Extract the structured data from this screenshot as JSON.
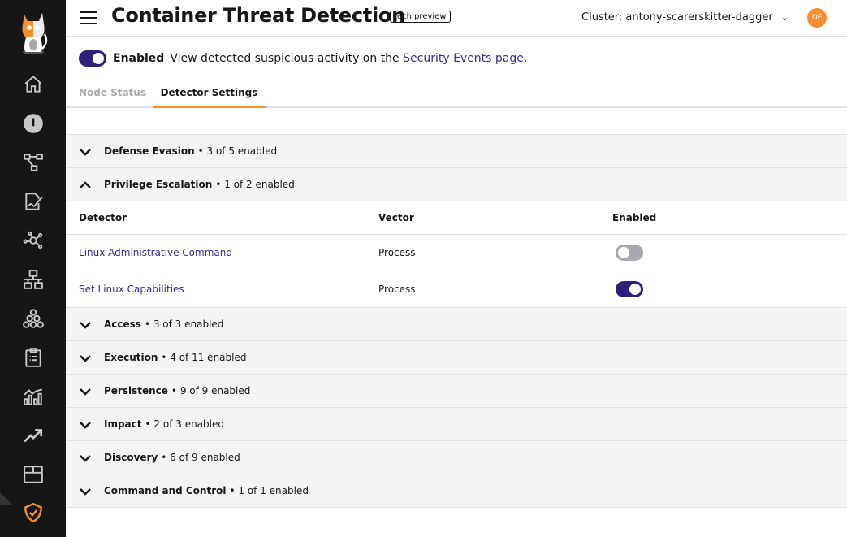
{
  "header": {
    "title": "Container Threat Detection",
    "badge": "tech preview",
    "cluster": "Cluster: antony-scarerskitter-dagger",
    "avatar": "DE"
  },
  "enable": {
    "label": "Enabled",
    "text": "View detected suspicious activity on the ",
    "link": "Security Events page",
    "suffix": ".",
    "on": true
  },
  "tabs": [
    {
      "label": "Node Status",
      "active": false
    },
    {
      "label": "Detector Settings",
      "active": true
    }
  ],
  "sidebar": {
    "items": [
      "home-icon",
      "dashboard-icon",
      "flow-icon",
      "policy-icon",
      "network-icon",
      "hierarchy-icon",
      "endpoints-icon",
      "compliance-icon",
      "analytics-icon",
      "trend-icon",
      "box-icon",
      "shield-icon"
    ],
    "active": "shield-icon",
    "accent": "#f68d2e"
  },
  "groups": [
    {
      "name": "Defense Evasion",
      "status": "• 3 of 5 enabled",
      "expanded": false
    },
    {
      "name": "Privilege Escalation",
      "status": "• 1 of 2 enabled",
      "expanded": true
    },
    {
      "name": "Access",
      "status": "• 3 of 3 enabled",
      "expanded": false
    },
    {
      "name": "Execution",
      "status": "• 4 of 11 enabled",
      "expanded": false
    },
    {
      "name": "Persistence",
      "status": "• 9 of 9 enabled",
      "expanded": false
    },
    {
      "name": "Impact",
      "status": "• 2 of 3 enabled",
      "expanded": false
    },
    {
      "name": "Discovery",
      "status": "• 6 of 9 enabled",
      "expanded": false
    },
    {
      "name": "Command and Control",
      "status": "• 1 of 1 enabled",
      "expanded": false
    }
  ],
  "table": {
    "headers": [
      "Detector",
      "Vector",
      "Enabled"
    ],
    "rows": [
      {
        "detector": "Linux Administrative Command",
        "vector": "Process",
        "enabled": false
      },
      {
        "detector": "Set Linux Capabilities",
        "vector": "Process",
        "enabled": true
      }
    ]
  }
}
